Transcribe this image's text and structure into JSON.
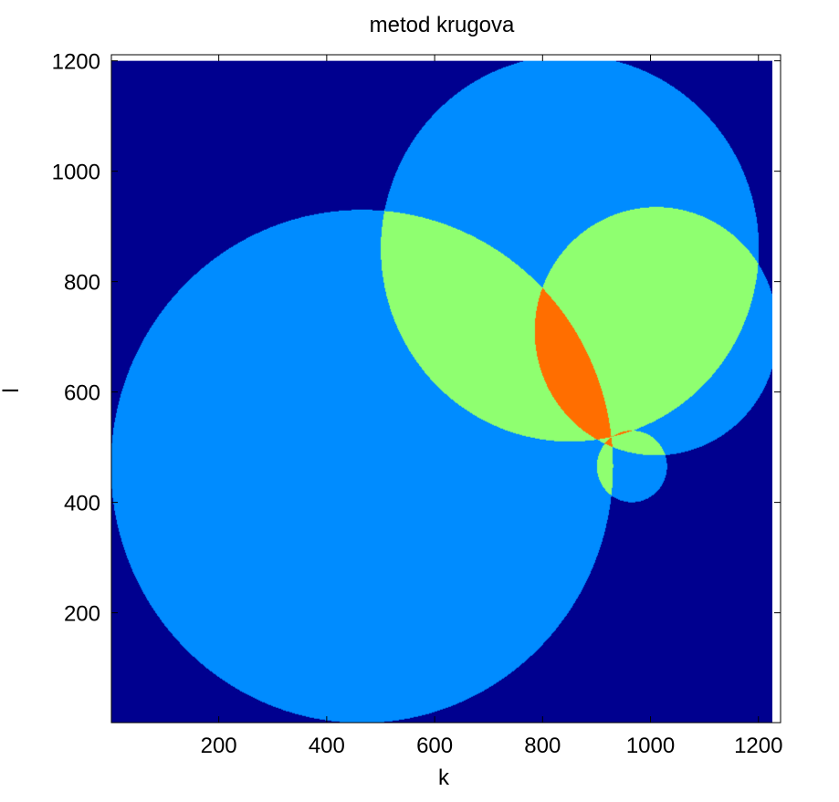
{
  "chart_data": {
    "type": "heatmap",
    "title": "metod krugova",
    "xlabel": "k",
    "ylabel": "l",
    "xlim": [
      1,
      1241
    ],
    "ylim": [
      1,
      1211
    ],
    "xticks": [
      200,
      400,
      600,
      800,
      1000,
      1200
    ],
    "yticks": [
      200,
      400,
      600,
      800,
      1000,
      1200
    ],
    "grid": false,
    "colormap": "jet",
    "level_colors": [
      "#00008f",
      "#008cff",
      "#8fff70",
      "#ff6e00",
      "#800000"
    ],
    "background_level": 0,
    "description_of_values": "count of overlapping circles at each (k, l) cell",
    "circles": [
      {
        "center_k": 465,
        "center_l": 465,
        "radius": 465
      },
      {
        "center_k": 850,
        "center_l": 860,
        "radius": 350
      },
      {
        "center_k": 1010,
        "center_l": 710,
        "radius": 225
      },
      {
        "center_k": 965,
        "center_l": 465,
        "radius": 65
      }
    ]
  }
}
